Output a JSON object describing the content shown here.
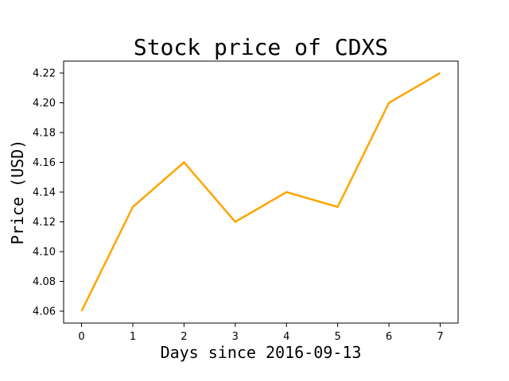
{
  "chart_data": {
    "type": "line",
    "title": "Stock price of CDXS",
    "xlabel": "Days since 2016-09-13",
    "ylabel": "Price (USD)",
    "x": [
      0,
      1,
      2,
      3,
      4,
      5,
      6,
      7
    ],
    "series": [
      {
        "values": [
          4.06,
          4.13,
          4.16,
          4.12,
          4.14,
          4.13,
          4.2,
          4.22
        ],
        "color": "#ffa500"
      }
    ],
    "xlim": [
      -0.35,
      7.35
    ],
    "ylim": [
      4.052,
      4.228
    ],
    "x_ticks": [
      0,
      1,
      2,
      3,
      4,
      5,
      6,
      7
    ],
    "x_tick_labels": [
      "0",
      "1",
      "2",
      "3",
      "4",
      "5",
      "6",
      "7"
    ],
    "y_ticks": [
      4.06,
      4.08,
      4.1,
      4.12,
      4.14,
      4.16,
      4.18,
      4.2,
      4.22
    ],
    "y_tick_labels": [
      "4.06",
      "4.08",
      "4.10",
      "4.12",
      "4.14",
      "4.16",
      "4.18",
      "4.20",
      "4.22"
    ],
    "grid": false,
    "legend": "none"
  }
}
